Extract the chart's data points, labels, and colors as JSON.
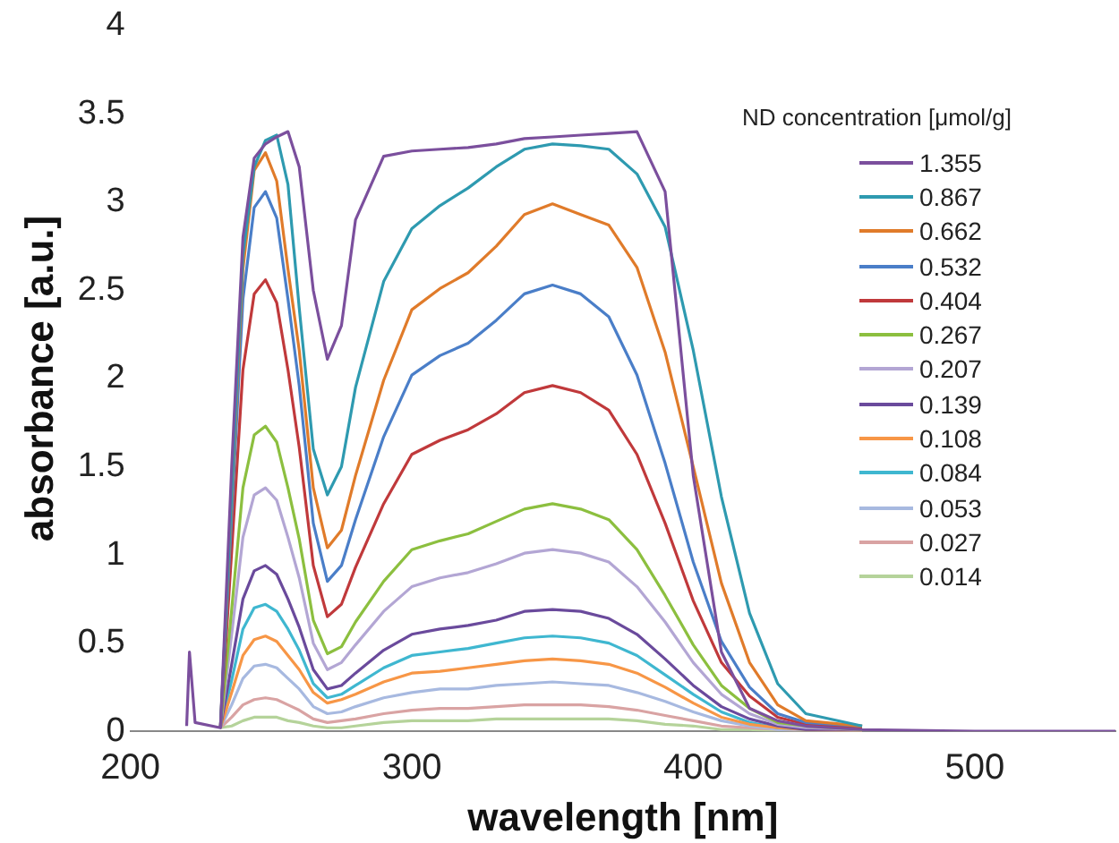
{
  "chart_data": {
    "type": "line",
    "xlabel": "wavelength [nm]",
    "ylabel": "absorbance [a.u.]",
    "legend_title": "ND concentration [μmol/g]",
    "legend": "top right",
    "grid": false,
    "marker": "none",
    "line_style": "solid",
    "x": [
      220,
      221,
      223,
      232,
      236,
      240,
      244,
      248,
      252,
      256,
      260,
      265,
      270,
      275,
      280,
      290,
      300,
      310,
      320,
      330,
      340,
      350,
      360,
      370,
      380,
      390,
      400,
      410,
      420,
      430,
      440,
      460,
      500,
      550
    ],
    "xlim": [
      200,
      550
    ],
    "xticks": [
      200,
      300,
      400,
      500
    ],
    "ylim": [
      0,
      4
    ],
    "yticks": [
      0,
      0.5,
      1,
      1.5,
      2,
      2.5,
      3,
      3.5,
      4
    ],
    "series": [
      {
        "name": "1.355",
        "color": "#7b4f9d",
        "values": [
          0.03,
          0.45,
          0.05,
          0.02,
          1.5,
          2.8,
          3.25,
          3.33,
          3.37,
          3.4,
          3.2,
          2.5,
          2.11,
          2.3,
          2.9,
          3.26,
          3.29,
          3.3,
          3.31,
          3.33,
          3.36,
          3.37,
          3.38,
          3.39,
          3.4,
          3.06,
          1.45,
          0.45,
          0.13,
          0.06,
          0.03,
          0.01,
          0,
          0
        ]
      },
      {
        "name": "0.867",
        "color": "#2e9ab0",
        "values": [
          null,
          null,
          null,
          0.02,
          1.35,
          2.7,
          3.2,
          3.35,
          3.38,
          3.1,
          2.4,
          1.6,
          1.34,
          1.5,
          1.95,
          2.55,
          2.85,
          2.98,
          3.08,
          3.2,
          3.3,
          3.33,
          3.32,
          3.3,
          3.16,
          2.86,
          2.16,
          1.33,
          0.67,
          0.27,
          0.1,
          0.03,
          null,
          null
        ]
      },
      {
        "name": "0.662",
        "color": "#e07b2a",
        "values": [
          null,
          null,
          null,
          0.02,
          1.31,
          2.62,
          3.18,
          3.28,
          3.12,
          2.62,
          2.16,
          1.38,
          1.04,
          1.14,
          1.45,
          1.99,
          2.39,
          2.51,
          2.6,
          2.75,
          2.93,
          2.99,
          2.93,
          2.87,
          2.63,
          2.15,
          1.5,
          0.84,
          0.39,
          0.15,
          0.06,
          0.03,
          null,
          null
        ]
      },
      {
        "name": "0.532",
        "color": "#4a7ec8",
        "values": [
          null,
          null,
          null,
          0.02,
          1.22,
          2.45,
          2.97,
          3.06,
          2.91,
          2.45,
          1.96,
          1.18,
          0.85,
          0.94,
          1.2,
          1.67,
          2.02,
          2.13,
          2.2,
          2.33,
          2.48,
          2.53,
          2.48,
          2.35,
          2.02,
          1.52,
          0.96,
          0.51,
          0.25,
          0.1,
          0.05,
          0.03,
          null,
          null
        ]
      },
      {
        "name": "0.404",
        "color": "#c0393b",
        "values": [
          null,
          null,
          null,
          0.02,
          1.02,
          2.05,
          2.48,
          2.56,
          2.43,
          2.05,
          1.61,
          0.94,
          0.65,
          0.72,
          0.93,
          1.29,
          1.57,
          1.65,
          1.71,
          1.8,
          1.92,
          1.96,
          1.92,
          1.82,
          1.57,
          1.18,
          0.74,
          0.39,
          0.2,
          0.08,
          0.04,
          0.02,
          null,
          null
        ]
      },
      {
        "name": "0.267",
        "color": "#8cbf3f",
        "values": [
          null,
          null,
          null,
          0.02,
          0.69,
          1.38,
          1.68,
          1.73,
          1.64,
          1.38,
          1.09,
          0.63,
          0.44,
          0.48,
          0.62,
          0.85,
          1.03,
          1.08,
          1.12,
          1.19,
          1.26,
          1.29,
          1.26,
          1.2,
          1.03,
          0.77,
          0.49,
          0.26,
          0.13,
          0.05,
          0.03,
          0.01,
          null,
          null
        ]
      },
      {
        "name": "0.207",
        "color": "#b3a6d4",
        "values": [
          null,
          null,
          null,
          0.02,
          0.55,
          1.1,
          1.34,
          1.38,
          1.31,
          1.1,
          0.87,
          0.5,
          0.35,
          0.39,
          0.49,
          0.68,
          0.82,
          0.87,
          0.9,
          0.95,
          1.01,
          1.03,
          1.01,
          0.96,
          0.82,
          0.62,
          0.39,
          0.21,
          0.1,
          0.04,
          0.02,
          0.01,
          null,
          null
        ]
      },
      {
        "name": "0.139",
        "color": "#6a4a9c",
        "values": [
          null,
          null,
          null,
          0.02,
          0.38,
          0.75,
          0.91,
          0.94,
          0.89,
          0.75,
          0.59,
          0.35,
          0.24,
          0.26,
          0.33,
          0.46,
          0.55,
          0.58,
          0.6,
          0.63,
          0.68,
          0.69,
          0.68,
          0.64,
          0.55,
          0.41,
          0.26,
          0.14,
          0.07,
          0.03,
          0.01,
          0.01,
          null,
          null
        ]
      },
      {
        "name": "0.108",
        "color": "#f79646",
        "values": [
          null,
          null,
          null,
          0.02,
          0.22,
          0.43,
          0.52,
          0.54,
          0.51,
          0.43,
          0.35,
          0.22,
          0.16,
          0.18,
          0.21,
          0.28,
          0.33,
          0.34,
          0.36,
          0.38,
          0.4,
          0.41,
          0.4,
          0.38,
          0.33,
          0.25,
          0.16,
          0.08,
          0.04,
          0.02,
          0.01,
          0,
          null,
          null
        ]
      },
      {
        "name": "0.084",
        "color": "#3fb7d0",
        "values": [
          null,
          null,
          null,
          0.02,
          0.29,
          0.58,
          0.7,
          0.72,
          0.68,
          0.58,
          0.46,
          0.27,
          0.19,
          0.21,
          0.26,
          0.36,
          0.43,
          0.45,
          0.47,
          0.5,
          0.53,
          0.54,
          0.53,
          0.5,
          0.43,
          0.32,
          0.21,
          0.11,
          0.05,
          0.02,
          0.01,
          0.01,
          null,
          null
        ]
      },
      {
        "name": "0.053",
        "color": "#a7b9e0",
        "values": [
          null,
          null,
          null,
          0.02,
          0.15,
          0.3,
          0.37,
          0.38,
          0.36,
          0.3,
          0.24,
          0.14,
          0.1,
          0.11,
          0.14,
          0.19,
          0.22,
          0.24,
          0.24,
          0.26,
          0.27,
          0.28,
          0.27,
          0.26,
          0.22,
          0.17,
          0.11,
          0.06,
          0.03,
          0.01,
          0.01,
          0,
          null,
          null
        ]
      },
      {
        "name": "0.027",
        "color": "#d9a3a3",
        "values": [
          null,
          null,
          null,
          0.02,
          0.08,
          0.15,
          0.18,
          0.19,
          0.18,
          0.15,
          0.12,
          0.07,
          0.05,
          0.06,
          0.07,
          0.1,
          0.12,
          0.13,
          0.13,
          0.14,
          0.15,
          0.15,
          0.15,
          0.14,
          0.12,
          0.09,
          0.06,
          0.03,
          0.02,
          0.01,
          0,
          0,
          null,
          null
        ]
      },
      {
        "name": "0.014",
        "color": "#b5d39a",
        "values": [
          null,
          null,
          null,
          0.02,
          0.03,
          0.06,
          0.08,
          0.08,
          0.08,
          0.06,
          0.05,
          0.03,
          0.02,
          0.02,
          0.03,
          0.05,
          0.06,
          0.06,
          0.06,
          0.07,
          0.07,
          0.07,
          0.07,
          0.07,
          0.06,
          0.04,
          0.03,
          0.01,
          0.01,
          0,
          0,
          0,
          null,
          null
        ]
      }
    ]
  }
}
